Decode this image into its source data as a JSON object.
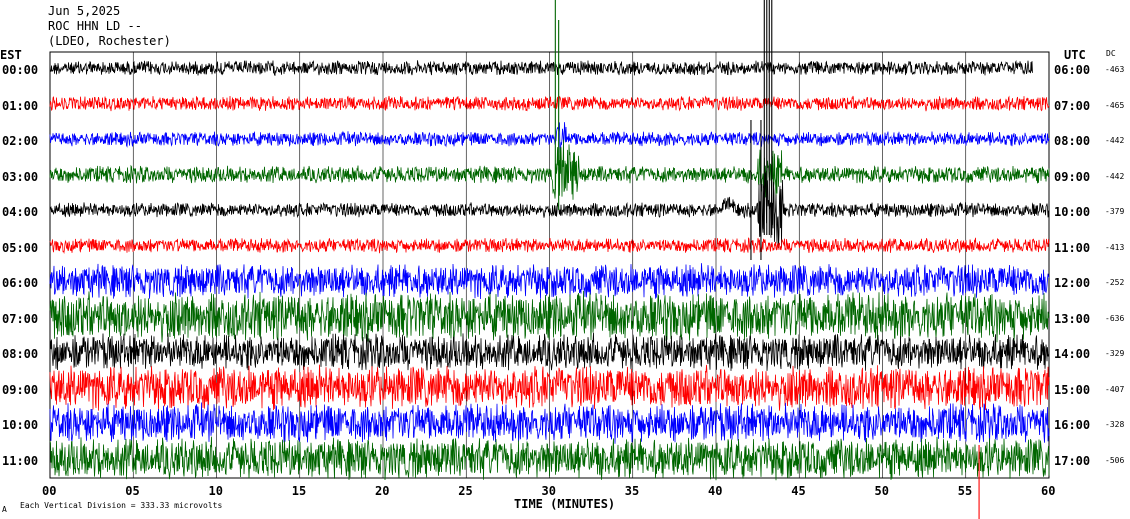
{
  "header": {
    "date": "Jun 5,2025",
    "station": "ROC HHN LD --",
    "network": "(LDEO, Rochester)"
  },
  "left_axis_title": "EST",
  "right_axis_title": "UTC",
  "dc_title": "DC",
  "x_axis_title": "TIME (MINUTES)",
  "footer": {
    "mark": "A",
    "scale_note": "Each Vertical Division = 333.33 microvolts"
  },
  "colors": {
    "black": "#000000",
    "red": "#ff0000",
    "blue": "#0000ff",
    "green": "#006600",
    "grid": "#000000"
  },
  "chart_data": {
    "type": "line",
    "xlabel": "TIME (MINUTES)",
    "xlim": [
      0,
      60
    ],
    "x_ticks": [
      "00",
      "05",
      "10",
      "15",
      "20",
      "25",
      "30",
      "35",
      "40",
      "45",
      "50",
      "55",
      "60"
    ],
    "grid": "vertical every 5 minutes",
    "series": [
      {
        "est": "00:00",
        "utc": "06:00",
        "dc": "-463",
        "color": "#000000",
        "amp": 6
      },
      {
        "est": "01:00",
        "utc": "07:00",
        "dc": "-465",
        "color": "#ff0000",
        "amp": 6
      },
      {
        "est": "02:00",
        "utc": "08:00",
        "dc": "-442",
        "color": "#0000ff",
        "amp": 6
      },
      {
        "est": "03:00",
        "utc": "09:00",
        "dc": "-442",
        "color": "#006600",
        "amp": 7
      },
      {
        "est": "04:00",
        "utc": "10:00",
        "dc": "-379",
        "color": "#000000",
        "amp": 6
      },
      {
        "est": "05:00",
        "utc": "11:00",
        "dc": "-413",
        "color": "#ff0000",
        "amp": 6
      },
      {
        "est": "06:00",
        "utc": "12:00",
        "dc": "-252",
        "color": "#0000ff",
        "amp": 14
      },
      {
        "est": "07:00",
        "utc": "13:00",
        "dc": "-636",
        "color": "#006600",
        "amp": 20
      },
      {
        "est": "08:00",
        "utc": "14:00",
        "dc": "-329",
        "color": "#000000",
        "amp": 15
      },
      {
        "est": "09:00",
        "utc": "15:00",
        "dc": "-407",
        "color": "#ff0000",
        "amp": 18
      },
      {
        "est": "10:00",
        "utc": "16:00",
        "dc": "-328",
        "color": "#0000ff",
        "amp": 16
      },
      {
        "est": "11:00",
        "utc": "17:00",
        "dc": "-506",
        "color": "#006600",
        "amp": 17
      }
    ],
    "events": [
      {
        "row": "03:00",
        "minute": 30.5,
        "description": "large spike"
      },
      {
        "row": "04:00",
        "minute": 43,
        "description": "earthquake arrival"
      }
    ]
  }
}
